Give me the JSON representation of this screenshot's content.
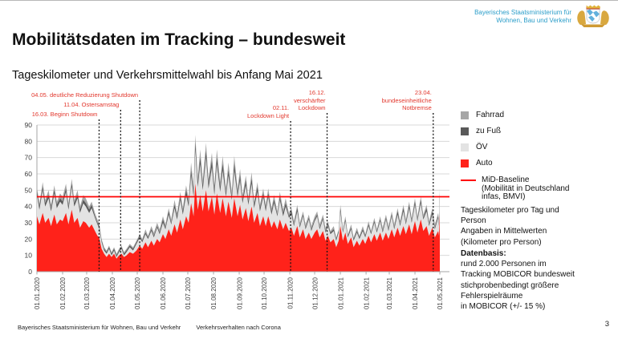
{
  "header": {
    "ministry_line1": "Bayerisches Staatsministerium für",
    "ministry_line2": "Wohnen, Bau und Verkehr",
    "brand_color": "#2a9dc9"
  },
  "title": "Mobilitätsdaten im Tracking – bundesweit",
  "subtitle": "Tageskilometer und Verkehrsmittelwahl bis Anfang Mai 2021",
  "chart_data": {
    "type": "area",
    "title": "Tageskilometer und Verkehrsmittelwahl bis Anfang Mai 2021",
    "ylabel": "Kilometer pro Person",
    "ylim": [
      0,
      90
    ],
    "y_step": 10,
    "grid": true,
    "legend_position": "right",
    "x_axis": {
      "labels": [
        "01.01.2020",
        "01.02.2020",
        "01.03.2020",
        "01.04.2020",
        "01.05.2020",
        "01.06.2020",
        "01.07.2020",
        "01.08.2020",
        "01.09.2020",
        "01.10.2020",
        "01.11.2020",
        "01.12.2020",
        "01.01.2021",
        "01.02.2021",
        "01.03.2021",
        "01.04.2021",
        "01.05.2021"
      ],
      "day_offsets": [
        0,
        31,
        60,
        91,
        121,
        152,
        182,
        213,
        244,
        274,
        305,
        335,
        366,
        397,
        425,
        456,
        486
      ]
    },
    "series": [
      {
        "name": "Auto",
        "color": "#ff221a"
      },
      {
        "name": "ÖV",
        "color": "#e3e3e3"
      },
      {
        "name": "zu Fuß",
        "color": "#595959"
      },
      {
        "name": "Fahrrad",
        "color": "#a6a6a6"
      }
    ],
    "baseline": {
      "label": "MiD-Baseline",
      "value": 46,
      "color": "#ff0000"
    },
    "events_color": "#e2372d",
    "events": [
      {
        "day": 75,
        "label_lines": [
          "16.03. Beginn Shutdown"
        ]
      },
      {
        "day": 101,
        "label_lines": [
          "11.04. Ostersamstag"
        ]
      },
      {
        "day": 124,
        "label_lines": [
          "04.05. deutliche Reduzierung Shutdown"
        ]
      },
      {
        "day": 306,
        "label_lines": [
          "02.11.",
          "Lockdown Light"
        ]
      },
      {
        "day": 350,
        "label_lines": [
          "16.12.",
          "verschärfter",
          "Lockdown"
        ]
      },
      {
        "day": 478,
        "label_lines": [
          "23.04.",
          "bundeseinheitliche",
          "Notbremse"
        ]
      }
    ],
    "samples_format": [
      "day",
      "Auto",
      "ÖV",
      "zu Fuß",
      "Fahrrad"
    ],
    "samples": [
      [
        0,
        34,
        13,
        2,
        3
      ],
      [
        3,
        29,
        9,
        2,
        2
      ],
      [
        7,
        36,
        14,
        2,
        3
      ],
      [
        10,
        30,
        10,
        2,
        2
      ],
      [
        14,
        33,
        12,
        2,
        3
      ],
      [
        17,
        28,
        9,
        2,
        2
      ],
      [
        21,
        35,
        13,
        2,
        3
      ],
      [
        24,
        29,
        10,
        2,
        2
      ],
      [
        28,
        32,
        11,
        2,
        3
      ],
      [
        31,
        31,
        10,
        2,
        3
      ],
      [
        35,
        36,
        13,
        2,
        3
      ],
      [
        38,
        29,
        9,
        2,
        2
      ],
      [
        42,
        38,
        14,
        2,
        3
      ],
      [
        45,
        30,
        10,
        2,
        2
      ],
      [
        49,
        33,
        12,
        2,
        3
      ],
      [
        52,
        27,
        9,
        2,
        2
      ],
      [
        56,
        31,
        11,
        2,
        3
      ],
      [
        59,
        30,
        10,
        2,
        3
      ],
      [
        63,
        27,
        9,
        2,
        2
      ],
      [
        66,
        29,
        10,
        2,
        2
      ],
      [
        70,
        25,
        8,
        1,
        2
      ],
      [
        73,
        22,
        7,
        1,
        2
      ],
      [
        75,
        21,
        6,
        1,
        2
      ],
      [
        78,
        14,
        4,
        1,
        1
      ],
      [
        81,
        11,
        2,
        1,
        1
      ],
      [
        84,
        9,
        2,
        1,
        1
      ],
      [
        87,
        11,
        3,
        1,
        1
      ],
      [
        90,
        9,
        1,
        1,
        1
      ],
      [
        93,
        11,
        2,
        1,
        1
      ],
      [
        96,
        8,
        1,
        1,
        1
      ],
      [
        99,
        10,
        2,
        1,
        1
      ],
      [
        102,
        11,
        3,
        1,
        1
      ],
      [
        105,
        9,
        1,
        1,
        1
      ],
      [
        108,
        10,
        2,
        1,
        1
      ],
      [
        112,
        12,
        3,
        1,
        1
      ],
      [
        116,
        11,
        2,
        1,
        1
      ],
      [
        120,
        13,
        4,
        1,
        1
      ],
      [
        124,
        16,
        5,
        1,
        1
      ],
      [
        127,
        14,
        4,
        1,
        1
      ],
      [
        131,
        18,
        5,
        1,
        2
      ],
      [
        134,
        15,
        5,
        1,
        1
      ],
      [
        138,
        19,
        6,
        1,
        2
      ],
      [
        141,
        16,
        5,
        1,
        2
      ],
      [
        145,
        20,
        7,
        1,
        2
      ],
      [
        148,
        18,
        5,
        1,
        2
      ],
      [
        152,
        23,
        7,
        2,
        2
      ],
      [
        155,
        20,
        6,
        1,
        2
      ],
      [
        159,
        26,
        9,
        2,
        2
      ],
      [
        162,
        22,
        7,
        1,
        2
      ],
      [
        166,
        29,
        10,
        2,
        3
      ],
      [
        169,
        24,
        8,
        2,
        2
      ],
      [
        173,
        32,
        12,
        2,
        3
      ],
      [
        176,
        26,
        9,
        2,
        2
      ],
      [
        180,
        34,
        13,
        3,
        3
      ],
      [
        183,
        30,
        10,
        2,
        3
      ],
      [
        186,
        42,
        17,
        3,
        5
      ],
      [
        189,
        34,
        12,
        3,
        3
      ],
      [
        191,
        54,
        21,
        4,
        5
      ],
      [
        194,
        38,
        14,
        3,
        3
      ],
      [
        197,
        47,
        19,
        4,
        5
      ],
      [
        200,
        37,
        13,
        3,
        3
      ],
      [
        204,
        50,
        20,
        4,
        5
      ],
      [
        207,
        37,
        14,
        3,
        3
      ],
      [
        211,
        46,
        18,
        4,
        5
      ],
      [
        214,
        35,
        12,
        3,
        3
      ],
      [
        217,
        48,
        18,
        4,
        5
      ],
      [
        221,
        36,
        13,
        3,
        3
      ],
      [
        224,
        45,
        17,
        4,
        5
      ],
      [
        228,
        34,
        12,
        2,
        3
      ],
      [
        231,
        43,
        16,
        3,
        5
      ],
      [
        235,
        33,
        11,
        2,
        3
      ],
      [
        238,
        45,
        17,
        4,
        5
      ],
      [
        242,
        34,
        12,
        2,
        3
      ],
      [
        245,
        41,
        15,
        3,
        4
      ],
      [
        248,
        32,
        10,
        2,
        3
      ],
      [
        252,
        39,
        14,
        3,
        3
      ],
      [
        255,
        31,
        10,
        2,
        2
      ],
      [
        259,
        40,
        14,
        3,
        4
      ],
      [
        262,
        30,
        9,
        2,
        2
      ],
      [
        266,
        36,
        13,
        3,
        3
      ],
      [
        269,
        28,
        9,
        2,
        2
      ],
      [
        273,
        34,
        12,
        2,
        3
      ],
      [
        276,
        28,
        9,
        2,
        2
      ],
      [
        279,
        34,
        12,
        2,
        3
      ],
      [
        283,
        27,
        8,
        2,
        2
      ],
      [
        286,
        31,
        11,
        2,
        3
      ],
      [
        290,
        26,
        8,
        1,
        2
      ],
      [
        293,
        32,
        12,
        2,
        3
      ],
      [
        297,
        26,
        8,
        2,
        2
      ],
      [
        300,
        30,
        10,
        2,
        3
      ],
      [
        304,
        25,
        8,
        1,
        2
      ],
      [
        307,
        27,
        8,
        2,
        2
      ],
      [
        310,
        22,
        6,
        1,
        2
      ],
      [
        314,
        28,
        9,
        2,
        2
      ],
      [
        317,
        21,
        6,
        1,
        2
      ],
      [
        321,
        26,
        8,
        1,
        2
      ],
      [
        324,
        20,
        6,
        1,
        2
      ],
      [
        328,
        24,
        8,
        1,
        2
      ],
      [
        331,
        20,
        5,
        1,
        2
      ],
      [
        335,
        24,
        7,
        1,
        2
      ],
      [
        338,
        26,
        8,
        1,
        2
      ],
      [
        341,
        21,
        5,
        1,
        2
      ],
      [
        345,
        25,
        7,
        1,
        2
      ],
      [
        348,
        19,
        5,
        1,
        2
      ],
      [
        351,
        22,
        6,
        1,
        2
      ],
      [
        354,
        18,
        5,
        1,
        1
      ],
      [
        358,
        20,
        5,
        1,
        2
      ],
      [
        361,
        15,
        4,
        1,
        1
      ],
      [
        364,
        19,
        5,
        1,
        1
      ],
      [
        366,
        28,
        9,
        2,
        2
      ],
      [
        369,
        19,
        5,
        1,
        1
      ],
      [
        372,
        24,
        7,
        1,
        2
      ],
      [
        375,
        17,
        4,
        1,
        1
      ],
      [
        379,
        21,
        5,
        1,
        2
      ],
      [
        382,
        15,
        4,
        1,
        1
      ],
      [
        386,
        19,
        5,
        1,
        2
      ],
      [
        389,
        16,
        4,
        1,
        1
      ],
      [
        393,
        20,
        5,
        1,
        2
      ],
      [
        396,
        17,
        4,
        1,
        1
      ],
      [
        400,
        22,
        6,
        1,
        2
      ],
      [
        403,
        18,
        5,
        1,
        1
      ],
      [
        407,
        23,
        7,
        1,
        2
      ],
      [
        410,
        19,
        5,
        1,
        1
      ],
      [
        414,
        24,
        7,
        1,
        2
      ],
      [
        417,
        19,
        5,
        1,
        2
      ],
      [
        421,
        24,
        8,
        1,
        2
      ],
      [
        424,
        20,
        5,
        1,
        2
      ],
      [
        428,
        26,
        8,
        1,
        2
      ],
      [
        431,
        21,
        5,
        1,
        2
      ],
      [
        435,
        27,
        8,
        2,
        2
      ],
      [
        438,
        22,
        6,
        1,
        2
      ],
      [
        442,
        28,
        9,
        2,
        2
      ],
      [
        445,
        23,
        6,
        1,
        2
      ],
      [
        449,
        29,
        10,
        2,
        2
      ],
      [
        452,
        23,
        7,
        1,
        2
      ],
      [
        456,
        31,
        10,
        2,
        2
      ],
      [
        459,
        24,
        7,
        1,
        2
      ],
      [
        463,
        32,
        10,
        2,
        2
      ],
      [
        466,
        25,
        7,
        1,
        2
      ],
      [
        470,
        28,
        9,
        2,
        2
      ],
      [
        473,
        22,
        6,
        1,
        2
      ],
      [
        477,
        27,
        8,
        2,
        2
      ],
      [
        480,
        21,
        5,
        1,
        2
      ],
      [
        484,
        25,
        8,
        1,
        2
      ],
      [
        485,
        22,
        6,
        1,
        2
      ],
      [
        486,
        35,
        11,
        2,
        3
      ]
    ]
  },
  "legend": {
    "items": [
      {
        "label": "Fahrrad",
        "color": "#a6a6a6"
      },
      {
        "label": "zu Fuß",
        "color": "#595959"
      },
      {
        "label": "ÖV",
        "color": "#e3e3e3"
      },
      {
        "label": "Auto",
        "color": "#ff221a"
      }
    ],
    "baseline": {
      "label": "MiD-Baseline",
      "sub1": "(Mobilität in Deutschland",
      "sub2": "infas, BMVI)",
      "color": "#ff0000"
    }
  },
  "notes": {
    "lines": [
      "Tageskilometer pro Tag und",
      "Person",
      "Angaben in Mittelwerten",
      "(Kilometer pro Person)"
    ]
  },
  "datenbasis": {
    "heading": "Datenbasis:",
    "lines": [
      "rund 2.000 Personen im",
      "Tracking MOBICOR bundesweit",
      "stichprobenbedingt größere",
      "Fehlerspielräume",
      "in MOBICOR (+/- 15 %)"
    ]
  },
  "footer": {
    "ministry": "Bayerisches Staatsministerium für Wohnen, Bau und Verkehr",
    "project": "Verkehrsverhalten nach Corona",
    "page": "3"
  }
}
